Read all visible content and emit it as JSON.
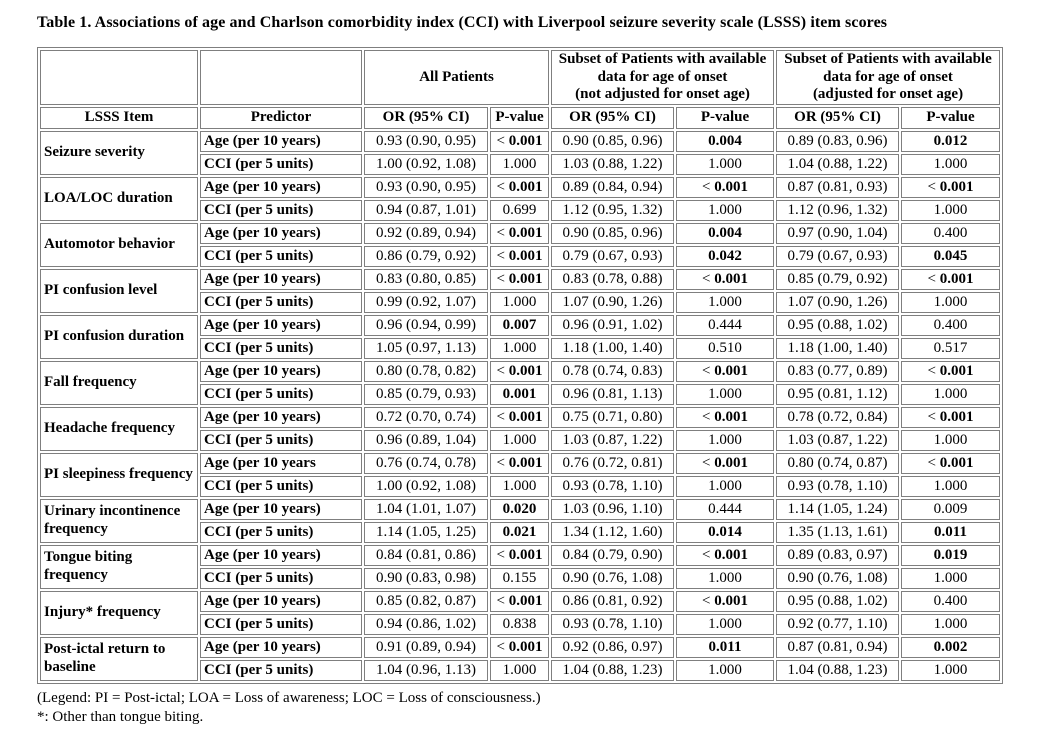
{
  "page": {
    "title": "Table 1. Associations of age and Charlson comorbidity index (CCI) with Liverpool seizure severity scale (LSSS) item scores",
    "legend_line1": "(Legend: PI = Post-ictal; LOA = Loss of awareness; LOC = Loss of consciousness.)",
    "legend_line2": "*: Other than tongue biting."
  },
  "colors": {
    "item_cell_bg": "#d9d9d9",
    "table_border": "#7f7f7f",
    "text": "#000000"
  },
  "table": {
    "group_headers": [
      {
        "lines": [
          ""
        ],
        "colspan": 1
      },
      {
        "lines": [
          ""
        ],
        "colspan": 1
      },
      {
        "lines": [
          "All Patients"
        ],
        "colspan": 2
      },
      {
        "lines": [
          "Subset of Patients with available",
          "data for age of onset",
          "(not adjusted for onset age)"
        ],
        "colspan": 2
      },
      {
        "lines": [
          "Subset of Patients with available",
          "data for age of onset",
          "(adjusted for onset age)"
        ],
        "colspan": 2
      }
    ],
    "column_headers": [
      "LSSS Item",
      "Predictor",
      "OR (95% CI)",
      "P-value",
      "OR (95% CI)",
      "P-value",
      "OR (95% CI)",
      "P-value"
    ],
    "items": [
      {
        "label": "Seizure severity",
        "rows": [
          {
            "predictor": "Age (per 10 years)",
            "or_all": "0.93 (0.90, 0.95)",
            "p_all": "< 0.001",
            "p_all_bold": true,
            "or_sub": "0.90 (0.85, 0.96)",
            "p_sub": "0.004",
            "p_sub_bold": true,
            "or_adj": "0.89 (0.83, 0.96)",
            "p_adj": "0.012",
            "p_adj_bold": true
          },
          {
            "predictor": "CCI (per 5 units)",
            "or_all": "1.00 (0.92, 1.08)",
            "p_all": "1.000",
            "p_all_bold": false,
            "or_sub": "1.03 (0.88, 1.22)",
            "p_sub": "1.000",
            "p_sub_bold": false,
            "or_adj": "1.04 (0.88, 1.22)",
            "p_adj": "1.000",
            "p_adj_bold": false
          }
        ]
      },
      {
        "label": "LOA/LOC duration",
        "rows": [
          {
            "predictor": "Age (per 10 years)",
            "or_all": "0.93 (0.90, 0.95)",
            "p_all": "< 0.001",
            "p_all_bold": true,
            "or_sub": "0.89 (0.84, 0.94)",
            "p_sub": "< 0.001",
            "p_sub_bold": true,
            "or_adj": "0.87 (0.81, 0.93)",
            "p_adj": "< 0.001",
            "p_adj_bold": true
          },
          {
            "predictor": "CCI (per 5 units)",
            "or_all": "0.94 (0.87, 1.01)",
            "p_all": "0.699",
            "p_all_bold": false,
            "or_sub": "1.12 (0.95, 1.32)",
            "p_sub": "1.000",
            "p_sub_bold": false,
            "or_adj": "1.12 (0.96, 1.32)",
            "p_adj": "1.000",
            "p_adj_bold": false
          }
        ]
      },
      {
        "label": "Automotor behavior",
        "rows": [
          {
            "predictor": "Age (per 10 years)",
            "or_all": "0.92 (0.89, 0.94)",
            "p_all": "< 0.001",
            "p_all_bold": true,
            "or_sub": "0.90 (0.85, 0.96)",
            "p_sub": "0.004",
            "p_sub_bold": true,
            "or_adj": "0.97 (0.90, 1.04)",
            "p_adj": "0.400",
            "p_adj_bold": false
          },
          {
            "predictor": "CCI (per 5 units)",
            "or_all": "0.86 (0.79, 0.92)",
            "p_all": "< 0.001",
            "p_all_bold": true,
            "or_sub": "0.79 (0.67, 0.93)",
            "p_sub": "0.042",
            "p_sub_bold": true,
            "or_adj": "0.79 (0.67, 0.93)",
            "p_adj": "0.045",
            "p_adj_bold": true
          }
        ]
      },
      {
        "label": "PI confusion level",
        "rows": [
          {
            "predictor": "Age (per 10 years)",
            "or_all": "0.83 (0.80, 0.85)",
            "p_all": "< 0.001",
            "p_all_bold": true,
            "or_sub": "0.83 (0.78, 0.88)",
            "p_sub": "< 0.001",
            "p_sub_bold": true,
            "or_adj": "0.85 (0.79, 0.92)",
            "p_adj": "< 0.001",
            "p_adj_bold": true
          },
          {
            "predictor": "CCI (per 5 units)",
            "or_all": "0.99 (0.92, 1.07)",
            "p_all": "1.000",
            "p_all_bold": false,
            "or_sub": "1.07 (0.90, 1.26)",
            "p_sub": "1.000",
            "p_sub_bold": false,
            "or_adj": "1.07 (0.90, 1.26)",
            "p_adj": "1.000",
            "p_adj_bold": false
          }
        ]
      },
      {
        "label": "PI confusion duration",
        "rows": [
          {
            "predictor": "Age (per 10 years)",
            "or_all": "0.96 (0.94, 0.99)",
            "p_all": "0.007",
            "p_all_bold": true,
            "or_sub": "0.96 (0.91, 1.02)",
            "p_sub": "0.444",
            "p_sub_bold": false,
            "or_adj": "0.95 (0.88, 1.02)",
            "p_adj": "0.400",
            "p_adj_bold": false
          },
          {
            "predictor": "CCI (per 5 units)",
            "or_all": "1.05 (0.97, 1.13)",
            "p_all": "1.000",
            "p_all_bold": false,
            "or_sub": "1.18 (1.00, 1.40)",
            "p_sub": "0.510",
            "p_sub_bold": false,
            "or_adj": "1.18 (1.00, 1.40)",
            "p_adj": "0.517",
            "p_adj_bold": false
          }
        ]
      },
      {
        "label": "Fall frequency",
        "rows": [
          {
            "predictor": "Age (per 10 years)",
            "or_all": "0.80 (0.78, 0.82)",
            "p_all": "< 0.001",
            "p_all_bold": true,
            "or_sub": "0.78 (0.74, 0.83)",
            "p_sub": "< 0.001",
            "p_sub_bold": true,
            "or_adj": "0.83 (0.77, 0.89)",
            "p_adj": "< 0.001",
            "p_adj_bold": true
          },
          {
            "predictor": "CCI (per 5 units)",
            "or_all": "0.85 (0.79, 0.93)",
            "p_all": "0.001",
            "p_all_bold": true,
            "or_sub": "0.96 (0.81, 1.13)",
            "p_sub": "1.000",
            "p_sub_bold": false,
            "or_adj": "0.95 (0.81, 1.12)",
            "p_adj": "1.000",
            "p_adj_bold": false
          }
        ]
      },
      {
        "label": "Headache frequency",
        "rows": [
          {
            "predictor": "Age (per 10 years)",
            "or_all": "0.72 (0.70, 0.74)",
            "p_all": "< 0.001",
            "p_all_bold": true,
            "or_sub": "0.75 (0.71, 0.80)",
            "p_sub": "< 0.001",
            "p_sub_bold": true,
            "or_adj": "0.78 (0.72, 0.84)",
            "p_adj": "< 0.001",
            "p_adj_bold": true
          },
          {
            "predictor": "CCI (per 5 units)",
            "or_all": "0.96 (0.89, 1.04)",
            "p_all": "1.000",
            "p_all_bold": false,
            "or_sub": "1.03 (0.87, 1.22)",
            "p_sub": "1.000",
            "p_sub_bold": false,
            "or_adj": "1.03 (0.87, 1.22)",
            "p_adj": "1.000",
            "p_adj_bold": false
          }
        ]
      },
      {
        "label": "PI sleepiness frequency",
        "rows": [
          {
            "predictor": "Age (per 10 years",
            "or_all": "0.76 (0.74, 0.78)",
            "p_all": "< 0.001",
            "p_all_bold": true,
            "or_sub": "0.76 (0.72, 0.81)",
            "p_sub": "< 0.001",
            "p_sub_bold": true,
            "or_adj": "0.80 (0.74, 0.87)",
            "p_adj": "< 0.001",
            "p_adj_bold": true
          },
          {
            "predictor": "CCI (per 5 units)",
            "or_all": "1.00 (0.92, 1.08)",
            "p_all": "1.000",
            "p_all_bold": false,
            "or_sub": "0.93 (0.78, 1.10)",
            "p_sub": "1.000",
            "p_sub_bold": false,
            "or_adj": "0.93 (0.78, 1.10)",
            "p_adj": "1.000",
            "p_adj_bold": false
          }
        ]
      },
      {
        "label": "Urinary incontinence frequency",
        "rows": [
          {
            "predictor": "Age (per 10 years)",
            "or_all": "1.04 (1.01, 1.07)",
            "p_all": "0.020",
            "p_all_bold": true,
            "or_sub": "1.03 (0.96, 1.10)",
            "p_sub": "0.444",
            "p_sub_bold": false,
            "or_adj": "1.14 (1.05, 1.24)",
            "p_adj": "0.009",
            "p_adj_bold": false
          },
          {
            "predictor": "CCI (per 5 units)",
            "or_all": "1.14 (1.05, 1.25)",
            "p_all": "0.021",
            "p_all_bold": true,
            "or_sub": "1.34 (1.12, 1.60)",
            "p_sub": "0.014",
            "p_sub_bold": true,
            "or_adj": "1.35 (1.13, 1.61)",
            "p_adj": "0.011",
            "p_adj_bold": true
          }
        ]
      },
      {
        "label": "Tongue biting frequency",
        "rows": [
          {
            "predictor": "Age (per 10 years)",
            "or_all": "0.84 (0.81, 0.86)",
            "p_all": "< 0.001",
            "p_all_bold": true,
            "or_sub": "0.84 (0.79, 0.90)",
            "p_sub": "< 0.001",
            "p_sub_bold": true,
            "or_adj": "0.89 (0.83, 0.97)",
            "p_adj": "0.019",
            "p_adj_bold": true
          },
          {
            "predictor": "CCI (per 5 units)",
            "or_all": "0.90 (0.83, 0.98)",
            "p_all": "0.155",
            "p_all_bold": false,
            "or_sub": "0.90 (0.76, 1.08)",
            "p_sub": "1.000",
            "p_sub_bold": false,
            "or_adj": "0.90 (0.76, 1.08)",
            "p_adj": "1.000",
            "p_adj_bold": false
          }
        ]
      },
      {
        "label": "Injury* frequency",
        "rows": [
          {
            "predictor": "Age (per 10 years)",
            "or_all": "0.85 (0.82, 0.87)",
            "p_all": "< 0.001",
            "p_all_bold": true,
            "or_sub": "0.86 (0.81, 0.92)",
            "p_sub": "< 0.001",
            "p_sub_bold": true,
            "or_adj": "0.95 (0.88, 1.02)",
            "p_adj": "0.400",
            "p_adj_bold": false
          },
          {
            "predictor": "CCI (per 5 units)",
            "or_all": "0.94 (0.86, 1.02)",
            "p_all": "0.838",
            "p_all_bold": false,
            "or_sub": "0.93 (0.78, 1.10)",
            "p_sub": "1.000",
            "p_sub_bold": false,
            "or_adj": "0.92 (0.77, 1.10)",
            "p_adj": "1.000",
            "p_adj_bold": false
          }
        ]
      },
      {
        "label": "Post-ictal return to baseline",
        "rows": [
          {
            "predictor": "Age (per 10 years)",
            "or_all": "0.91 (0.89, 0.94)",
            "p_all": "< 0.001",
            "p_all_bold": true,
            "or_sub": "0.92 (0.86, 0.97)",
            "p_sub": "0.011",
            "p_sub_bold": true,
            "or_adj": "0.87 (0.81, 0.94)",
            "p_adj": "0.002",
            "p_adj_bold": true
          },
          {
            "predictor": "CCI (per 5 units)",
            "or_all": "1.04 (0.96, 1.13)",
            "p_all": "1.000",
            "p_all_bold": false,
            "or_sub": "1.04 (0.88, 1.23)",
            "p_sub": "1.000",
            "p_sub_bold": false,
            "or_adj": "1.04 (0.88, 1.23)",
            "p_adj": "1.000",
            "p_adj_bold": false
          }
        ]
      }
    ]
  }
}
